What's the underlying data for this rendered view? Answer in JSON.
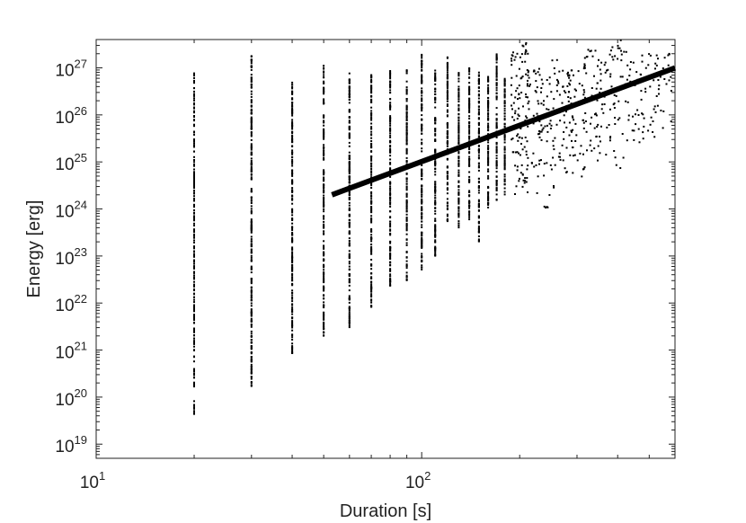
{
  "chart_data": {
    "type": "scatter",
    "title": "",
    "xlabel": "Duration [s]",
    "ylabel": "Energy [erg]",
    "x_scale": "log",
    "y_scale": "log",
    "xlim": [
      10,
      600
    ],
    "ylim": [
      5e+18,
      4e+27
    ],
    "grid": false,
    "legend": "none",
    "x_ticks": [
      {
        "base": "10",
        "exp": "1"
      },
      {
        "base": "10",
        "exp": "2"
      }
    ],
    "y_ticks": [
      {
        "base": "10",
        "exp": "19"
      },
      {
        "base": "10",
        "exp": "20"
      },
      {
        "base": "10",
        "exp": "21"
      },
      {
        "base": "10",
        "exp": "22"
      },
      {
        "base": "10",
        "exp": "23"
      },
      {
        "base": "10",
        "exp": "24"
      },
      {
        "base": "10",
        "exp": "25"
      },
      {
        "base": "10",
        "exp": "26"
      },
      {
        "base": "10",
        "exp": "27"
      }
    ],
    "marker_color": "#000000",
    "point_columns": [
      {
        "duration": 20,
        "energy_min": 4e+19,
        "energy_max": 8e+26
      },
      {
        "duration": 30,
        "energy_min": 1.6e+20,
        "energy_max": 2e+27
      },
      {
        "duration": 40,
        "energy_min": 8e+20,
        "energy_max": 5e+26
      },
      {
        "duration": 50,
        "energy_min": 2e+21,
        "energy_max": 1.5e+27
      },
      {
        "duration": 60,
        "energy_min": 3e+21,
        "energy_max": 8e+26
      },
      {
        "duration": 70,
        "energy_min": 8e+21,
        "energy_max": 1e+27
      },
      {
        "duration": 80,
        "energy_min": 2e+22,
        "energy_max": 9e+26
      },
      {
        "duration": 90,
        "energy_min": 3e+22,
        "energy_max": 9e+26
      },
      {
        "duration": 100,
        "energy_min": 5e+22,
        "energy_max": 2e+27
      },
      {
        "duration": 110,
        "energy_min": 1e+23,
        "energy_max": 1e+27
      },
      {
        "duration": 120,
        "energy_min": 5e+23,
        "energy_max": 2e+27
      },
      {
        "duration": 130,
        "energy_min": 4e+23,
        "energy_max": 8e+26
      },
      {
        "duration": 140,
        "energy_min": 6e+23,
        "energy_max": 1e+27
      },
      {
        "duration": 150,
        "energy_min": 2e+23,
        "energy_max": 8e+26
      },
      {
        "duration": 160,
        "energy_min": 1e+24,
        "energy_max": 7e+26
      },
      {
        "duration": 170,
        "energy_min": 1.5e+24,
        "energy_max": 2e+27
      },
      {
        "duration": 180,
        "energy_min": 2e+24,
        "energy_max": 6e+26
      },
      {
        "duration": 200,
        "energy_min": 2e+24,
        "energy_max": 4e+27
      },
      {
        "duration": 220,
        "energy_min": 3e+24,
        "energy_max": 1e+27
      },
      {
        "duration": 240,
        "energy_min": 1e+24,
        "energy_max": 8e+26
      },
      {
        "duration": 260,
        "energy_min": 4e+24,
        "energy_max": 1.5e+27
      },
      {
        "duration": 280,
        "energy_min": 5e+24,
        "energy_max": 1e+27
      },
      {
        "duration": 300,
        "energy_min": 4e+24,
        "energy_max": 9e+26
      },
      {
        "duration": 330,
        "energy_min": 5e+24,
        "energy_max": 3e+27
      },
      {
        "duration": 360,
        "energy_min": 1e+25,
        "energy_max": 1.5e+27
      },
      {
        "duration": 400,
        "energy_min": 5e+24,
        "energy_max": 4e+27
      },
      {
        "duration": 450,
        "energy_min": 2e+25,
        "energy_max": 1.5e+27
      },
      {
        "duration": 500,
        "energy_min": 2e+25,
        "energy_max": 2e+27
      },
      {
        "duration": 550,
        "energy_min": 5e+25,
        "energy_max": 2e+27
      }
    ],
    "fit_line": {
      "x": [
        53,
        600
      ],
      "y": [
        2e+24,
        1e+27
      ]
    }
  }
}
